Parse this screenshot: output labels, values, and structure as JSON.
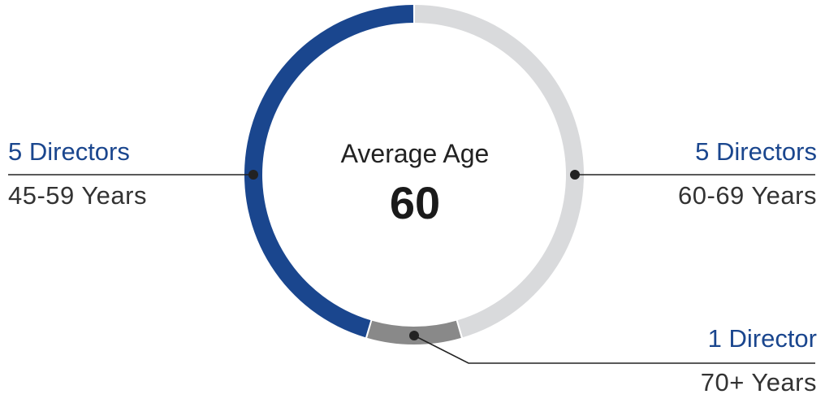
{
  "chart_data": {
    "type": "pie",
    "style": "donut",
    "center": {
      "title": "Average Age",
      "value": "60"
    },
    "slices": [
      {
        "count_label": "5 Directors",
        "range_label": "60-69 Years",
        "value": 5,
        "color": "#d9dadc"
      },
      {
        "count_label": "1 Director",
        "range_label": "70+ Years",
        "value": 1,
        "color": "#898989"
      },
      {
        "count_label": "5 Directors",
        "range_label": "45-59 Years",
        "value": 5,
        "color": "#1a468e"
      }
    ],
    "line_color": "#222222"
  }
}
